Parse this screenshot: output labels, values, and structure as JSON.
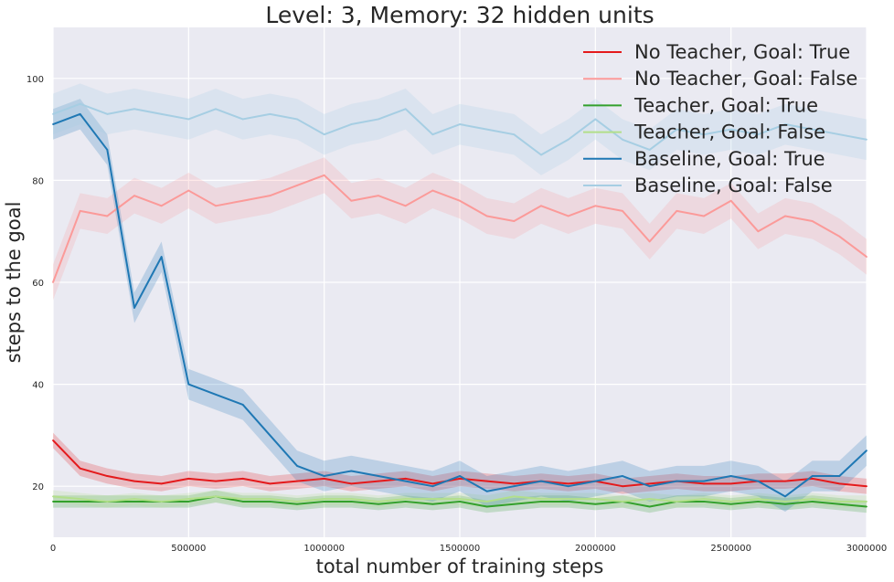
{
  "chart_data": {
    "type": "line",
    "title": "Level: 3, Memory: 32 hidden units",
    "xlabel": "total number of training steps",
    "ylabel": "steps to the goal",
    "xlim": [
      0,
      3000000
    ],
    "ylim": [
      10,
      110
    ],
    "x_ticks": [
      0,
      500000,
      1000000,
      1500000,
      2000000,
      2500000,
      3000000
    ],
    "x_tick_labels": [
      "0",
      "500000",
      "1000000",
      "1500000",
      "2000000",
      "2500000",
      "3000000"
    ],
    "y_ticks": [
      20,
      40,
      60,
      80,
      100
    ],
    "y_tick_labels": [
      "20",
      "40",
      "60",
      "80",
      "100"
    ],
    "grid": true,
    "legend_position": "top-right",
    "x": [
      0,
      100000,
      200000,
      300000,
      400000,
      500000,
      600000,
      700000,
      800000,
      900000,
      1000000,
      1100000,
      1200000,
      1300000,
      1400000,
      1500000,
      1600000,
      1700000,
      1800000,
      1900000,
      2000000,
      2100000,
      2200000,
      2300000,
      2400000,
      2500000,
      2600000,
      2700000,
      2800000,
      2900000,
      3000000
    ],
    "series": [
      {
        "name": "No Teacher, Goal: True",
        "color": "#e41a1c",
        "band": 1.5,
        "values": [
          29,
          23.5,
          22,
          21,
          20.5,
          21.5,
          21,
          21.5,
          20.5,
          21,
          21.5,
          20.5,
          21,
          21.5,
          20.5,
          21.5,
          21,
          20.5,
          21,
          20.5,
          21,
          20,
          20.5,
          21,
          20.5,
          20.5,
          21,
          21,
          21.5,
          20.5,
          20
        ]
      },
      {
        "name": "No Teacher, Goal: False",
        "color": "#fb9a99",
        "band": 3.5,
        "values": [
          60,
          74,
          73,
          77,
          75,
          78,
          75,
          76,
          77,
          79,
          81,
          76,
          77,
          75,
          78,
          76,
          73,
          72,
          75,
          73,
          75,
          74,
          68,
          74,
          73,
          76,
          70,
          73,
          72,
          69,
          65
        ]
      },
      {
        "name": "Teacher, Goal: True",
        "color": "#33a02c",
        "band": 1.2,
        "values": [
          17,
          17,
          17,
          17,
          17,
          17,
          18,
          17,
          17,
          16.5,
          17,
          17,
          16.5,
          17,
          16.5,
          17,
          16,
          16.5,
          17,
          17,
          16.5,
          17,
          16,
          17,
          17,
          16.5,
          17,
          16.5,
          17,
          16.5,
          16
        ]
      },
      {
        "name": "Teacher, Goal: False",
        "color": "#b2df8a",
        "band": 1.2,
        "values": [
          18,
          17.5,
          17,
          17.5,
          17,
          17.5,
          18,
          17.5,
          17.5,
          17,
          17.5,
          17.5,
          17,
          17.5,
          17.5,
          17.5,
          17,
          18,
          17.5,
          17.5,
          17.5,
          17,
          17.5,
          17,
          17.5,
          17,
          17.5,
          17,
          17.5,
          17,
          17
        ]
      },
      {
        "name": "Baseline, Goal: True",
        "color": "#1f78b4",
        "band": 3,
        "values": [
          91,
          93,
          86,
          55,
          65,
          40,
          38,
          36,
          30,
          24,
          22,
          23,
          22,
          21,
          20,
          22,
          19,
          20,
          21,
          20,
          21,
          22,
          20,
          21,
          21,
          22,
          21,
          18,
          22,
          22,
          27
        ]
      },
      {
        "name": "Baseline, Goal: False",
        "color": "#a6cee3",
        "band": 4,
        "values": [
          93,
          95,
          93,
          94,
          93,
          92,
          94,
          92,
          93,
          92,
          89,
          91,
          92,
          94,
          89,
          91,
          90,
          89,
          85,
          88,
          92,
          88,
          86,
          90,
          89,
          90,
          89,
          91,
          90,
          89,
          88
        ]
      }
    ]
  }
}
